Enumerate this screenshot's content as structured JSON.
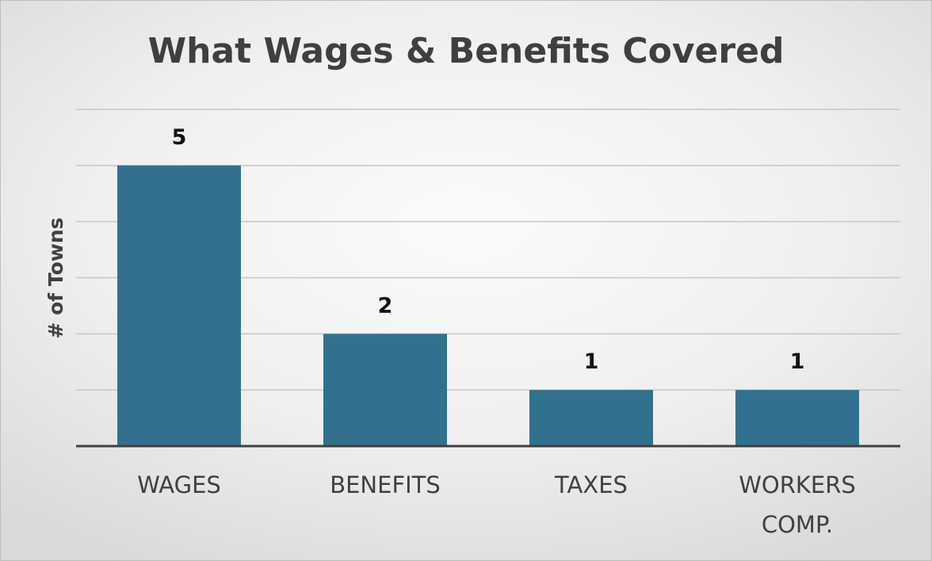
{
  "chart_data": {
    "type": "bar",
    "title": "What Wages & Benefits Covered",
    "xlabel": "",
    "ylabel": "# of Towns",
    "categories": [
      "WAGES",
      "BENEFITS",
      "TAXES",
      "WORKERS COMP."
    ],
    "category_lines": [
      [
        "WAGES"
      ],
      [
        "BENEFITS"
      ],
      [
        "TAXES"
      ],
      [
        "WORKERS",
        "COMP."
      ]
    ],
    "values": [
      5,
      2,
      1,
      1
    ],
    "data_labels": [
      "5",
      "2",
      "1",
      "1"
    ],
    "ylim": [
      0,
      6
    ],
    "grid": true,
    "legend": "none",
    "bar_color": "#32718d",
    "gridline_color": "#c6c6c6",
    "baseline_color": "#404040"
  }
}
